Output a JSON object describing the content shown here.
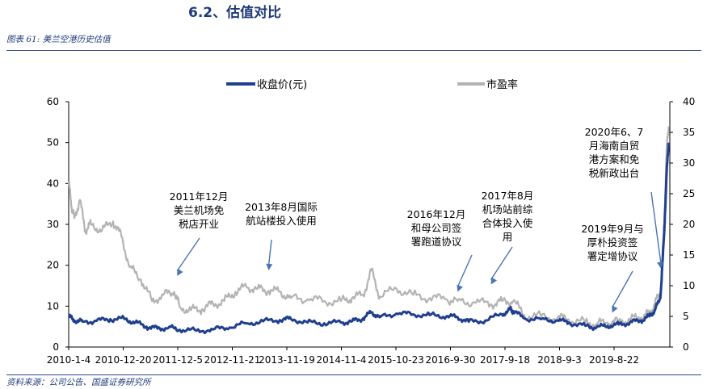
{
  "section_title": "6.2、估值对比",
  "caption": "图表 61:  美兰空港历史估值",
  "source": "资料来源：公司公告、国盛证券研究所",
  "colors": {
    "price": "#1f3f8f",
    "pe": "#b3b3b3",
    "axis": "#000000",
    "arrow": "#4a74b4"
  },
  "chart_data": {
    "type": "line",
    "title": "",
    "legend": [
      "收盘价(元)",
      "市盈率"
    ],
    "legend_position": "top",
    "x_tick_labels": [
      "2010-1-4",
      "2010-12-20",
      "2011-12-5",
      "2012-11-21",
      "2013-11-19",
      "2014-11-4",
      "2015-10-23",
      "2016-9-30",
      "2017-9-18",
      "2018-9-3",
      "2019-8-22"
    ],
    "y_left": {
      "label": "收盘价(元)",
      "range": [
        0,
        60
      ],
      "ticks": [
        "0",
        "10",
        "20",
        "30",
        "40",
        "50",
        "60"
      ]
    },
    "y_right": {
      "label": "市盈率",
      "range": [
        0,
        40
      ],
      "ticks": [
        "0",
        "5",
        "10",
        "15",
        "20",
        "25",
        "30",
        "35",
        "40"
      ]
    },
    "x_range": [
      2010.0,
      2020.82
    ],
    "series": [
      {
        "name": "收盘价(元)",
        "axis": "left",
        "x": [
          2010.0,
          2010.1,
          2010.25,
          2010.5,
          2010.75,
          2011.0,
          2011.2,
          2011.4,
          2011.6,
          2011.8,
          2012.0,
          2012.3,
          2012.6,
          2012.9,
          2013.2,
          2013.5,
          2013.8,
          2014.0,
          2014.3,
          2014.6,
          2014.9,
          2015.1,
          2015.3,
          2015.45,
          2015.6,
          2015.9,
          2016.2,
          2016.5,
          2016.8,
          2017.0,
          2017.2,
          2017.5,
          2017.8,
          2017.95,
          2018.0,
          2018.2,
          2018.5,
          2018.8,
          2019.0,
          2019.3,
          2019.5,
          2019.7,
          2019.9,
          2020.1,
          2020.3,
          2020.45,
          2020.55,
          2020.65,
          2020.72,
          2020.76,
          2020.8
        ],
        "y": [
          7.5,
          6.5,
          6.2,
          6.4,
          6.8,
          6.9,
          6.0,
          5.0,
          4.5,
          4.8,
          4.2,
          4.0,
          4.3,
          4.8,
          5.8,
          6.3,
          6.6,
          6.9,
          6.0,
          5.8,
          6.0,
          6.3,
          7.0,
          8.5,
          7.3,
          8.2,
          8.0,
          7.8,
          7.5,
          7.3,
          6.2,
          6.5,
          8.0,
          9.2,
          8.8,
          7.0,
          6.8,
          6.5,
          6.0,
          5.2,
          4.8,
          5.2,
          5.5,
          6.0,
          6.5,
          7.5,
          9.0,
          12.0,
          28.0,
          42.0,
          50.0
        ]
      },
      {
        "name": "市盈率",
        "axis": "right",
        "x": [
          2010.0,
          2010.05,
          2010.1,
          2010.2,
          2010.3,
          2010.4,
          2010.6,
          2010.8,
          2010.95,
          2011.1,
          2011.3,
          2011.5,
          2011.7,
          2011.9,
          2012.0,
          2012.2,
          2012.4,
          2012.6,
          2012.8,
          2013.0,
          2013.2,
          2013.4,
          2013.6,
          2013.8,
          2014.0,
          2014.3,
          2014.6,
          2014.9,
          2015.1,
          2015.3,
          2015.45,
          2015.6,
          2015.9,
          2016.2,
          2016.5,
          2016.8,
          2017.0,
          2017.3,
          2017.6,
          2017.8,
          2018.0,
          2018.2,
          2018.5,
          2018.8,
          2019.0,
          2019.3,
          2019.5,
          2019.7,
          2019.9,
          2020.1,
          2020.3,
          2020.45,
          2020.55,
          2020.65,
          2020.72,
          2020.76,
          2020.8
        ],
        "y": [
          27.0,
          23.0,
          21.0,
          24.0,
          19.0,
          20.0,
          19.0,
          20.5,
          18.0,
          13.0,
          11.0,
          7.5,
          8.5,
          9.0,
          6.5,
          6.0,
          6.2,
          7.0,
          7.5,
          9.0,
          9.8,
          9.5,
          9.2,
          9.0,
          8.0,
          7.8,
          7.5,
          7.5,
          8.0,
          8.5,
          12.5,
          8.2,
          9.5,
          8.5,
          8.0,
          7.8,
          7.5,
          7.3,
          7.0,
          7.5,
          7.5,
          5.2,
          5.0,
          4.8,
          4.5,
          4.0,
          3.8,
          4.0,
          4.2,
          4.5,
          4.8,
          5.5,
          7.0,
          9.0,
          20.0,
          32.0,
          36.0
        ]
      }
    ],
    "annotations": [
      {
        "lines": [
          "2011年12月",
          "美兰机场免",
          "税店开业"
        ],
        "x": 2011.95,
        "y_right": 11.6
      },
      {
        "lines": [
          "2013年8月国际",
          "航站楼投入使用"
        ],
        "x": 2013.6,
        "y_right": 12.5
      },
      {
        "lines": [
          "2016年12月",
          "和母公司签",
          "署跑道协议"
        ],
        "x": 2017.0,
        "y_right": 9.0
      },
      {
        "lines": [
          "2017年8月",
          "机场站前综",
          "合体投入使",
          "用"
        ],
        "x": 2017.6,
        "y_right": 10.2
      },
      {
        "lines": [
          "2019年9月与",
          "厚朴投资签",
          "署定增协议"
        ],
        "x": 2019.78,
        "y_right": 5.6
      },
      {
        "lines": [
          "2020年6、7",
          "月海南自贸",
          "港方案和免",
          "税新政出台"
        ],
        "x": 2020.66,
        "y_right": 12.8
      }
    ]
  }
}
